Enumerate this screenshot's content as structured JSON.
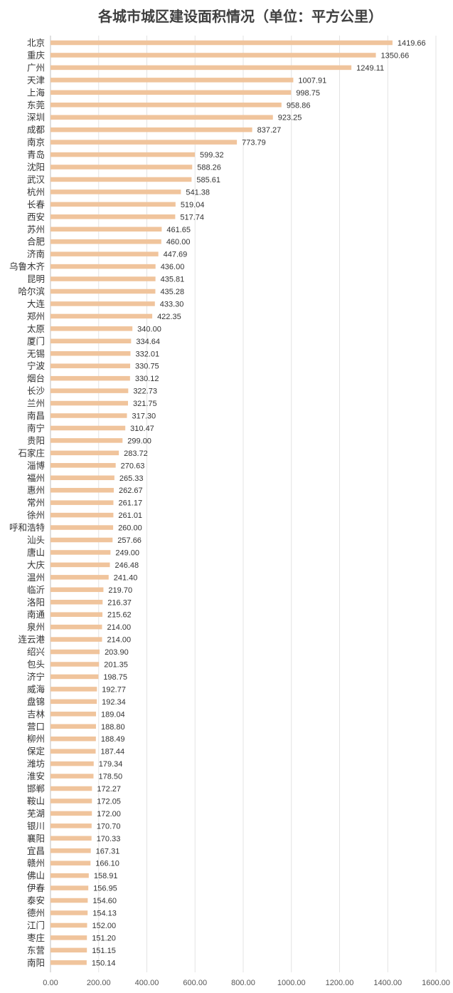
{
  "chart_data": {
    "type": "bar",
    "orientation": "horizontal",
    "title": "各城市城区建设面积情况（单位：平方公里）",
    "xlim": [
      0,
      1600
    ],
    "xticks": [
      "0.00",
      "200.00",
      "400.00",
      "600.00",
      "800.00",
      "1000.00",
      "1200.00",
      "1400.00",
      "1600.00"
    ],
    "grid": true,
    "bar_color": "#f0c49c",
    "categories": [
      "北京",
      "重庆",
      "广州",
      "天津",
      "上海",
      "东莞",
      "深圳",
      "成都",
      "南京",
      "青岛",
      "沈阳",
      "武汉",
      "杭州",
      "长春",
      "西安",
      "苏州",
      "合肥",
      "济南",
      "乌鲁木齐",
      "昆明",
      "哈尔滨",
      "大连",
      "郑州",
      "太原",
      "厦门",
      "无锡",
      "宁波",
      "烟台",
      "长沙",
      "兰州",
      "南昌",
      "南宁",
      "贵阳",
      "石家庄",
      "淄博",
      "福州",
      "惠州",
      "常州",
      "徐州",
      "呼和浩特",
      "汕头",
      "唐山",
      "大庆",
      "温州",
      "临沂",
      "洛阳",
      "南通",
      "泉州",
      "连云港",
      "绍兴",
      "包头",
      "济宁",
      "威海",
      "盘锦",
      "吉林",
      "营口",
      "柳州",
      "保定",
      "潍坊",
      "淮安",
      "邯郸",
      "鞍山",
      "芜湖",
      "银川",
      "襄阳",
      "宜昌",
      "赣州",
      "佛山",
      "伊春",
      "泰安",
      "德州",
      "江门",
      "枣庄",
      "东营",
      "南阳"
    ],
    "values": [
      1419.66,
      1350.66,
      1249.11,
      1007.91,
      998.75,
      958.86,
      923.25,
      837.27,
      773.79,
      599.32,
      588.26,
      585.61,
      541.38,
      519.04,
      517.74,
      461.65,
      460.0,
      447.69,
      436.0,
      435.81,
      435.28,
      433.3,
      422.35,
      340.0,
      334.64,
      332.01,
      330.75,
      330.12,
      322.73,
      321.75,
      317.3,
      310.47,
      299.0,
      283.72,
      270.63,
      265.33,
      262.67,
      261.17,
      261.01,
      260.0,
      257.66,
      249.0,
      246.48,
      241.4,
      219.7,
      216.37,
      215.62,
      214.0,
      214.0,
      203.9,
      201.35,
      198.75,
      192.77,
      192.34,
      189.04,
      188.8,
      188.49,
      187.44,
      179.34,
      178.5,
      172.27,
      172.05,
      172.0,
      170.7,
      170.33,
      167.31,
      166.1,
      158.91,
      156.95,
      154.6,
      154.13,
      152.0,
      151.2,
      151.15,
      150.14
    ],
    "value_labels": [
      "1419.66",
      "1350.66",
      "1249.11",
      "1007.91",
      "998.75",
      "958.86",
      "923.25",
      "837.27",
      "773.79",
      "599.32",
      "588.26",
      "585.61",
      "541.38",
      "519.04",
      "517.74",
      "461.65",
      "460.00",
      "447.69",
      "436.00",
      "435.81",
      "435.28",
      "433.30",
      "422.35",
      "340.00",
      "334.64",
      "332.01",
      "330.75",
      "330.12",
      "322.73",
      "321.75",
      "317.30",
      "310.47",
      "299.00",
      "283.72",
      "270.63",
      "265.33",
      "262.67",
      "261.17",
      "261.01",
      "260.00",
      "257.66",
      "249.00",
      "246.48",
      "241.40",
      "219.70",
      "216.37",
      "215.62",
      "214.00",
      "214.00",
      "203.90",
      "201.35",
      "198.75",
      "192.77",
      "192.34",
      "189.04",
      "188.80",
      "188.49",
      "187.44",
      "179.34",
      "178.50",
      "172.27",
      "172.05",
      "172.00",
      "170.70",
      "170.33",
      "167.31",
      "166.10",
      "158.91",
      "156.95",
      "154.60",
      "154.13",
      "152.00",
      "151.20",
      "151.15",
      "150.14"
    ]
  }
}
